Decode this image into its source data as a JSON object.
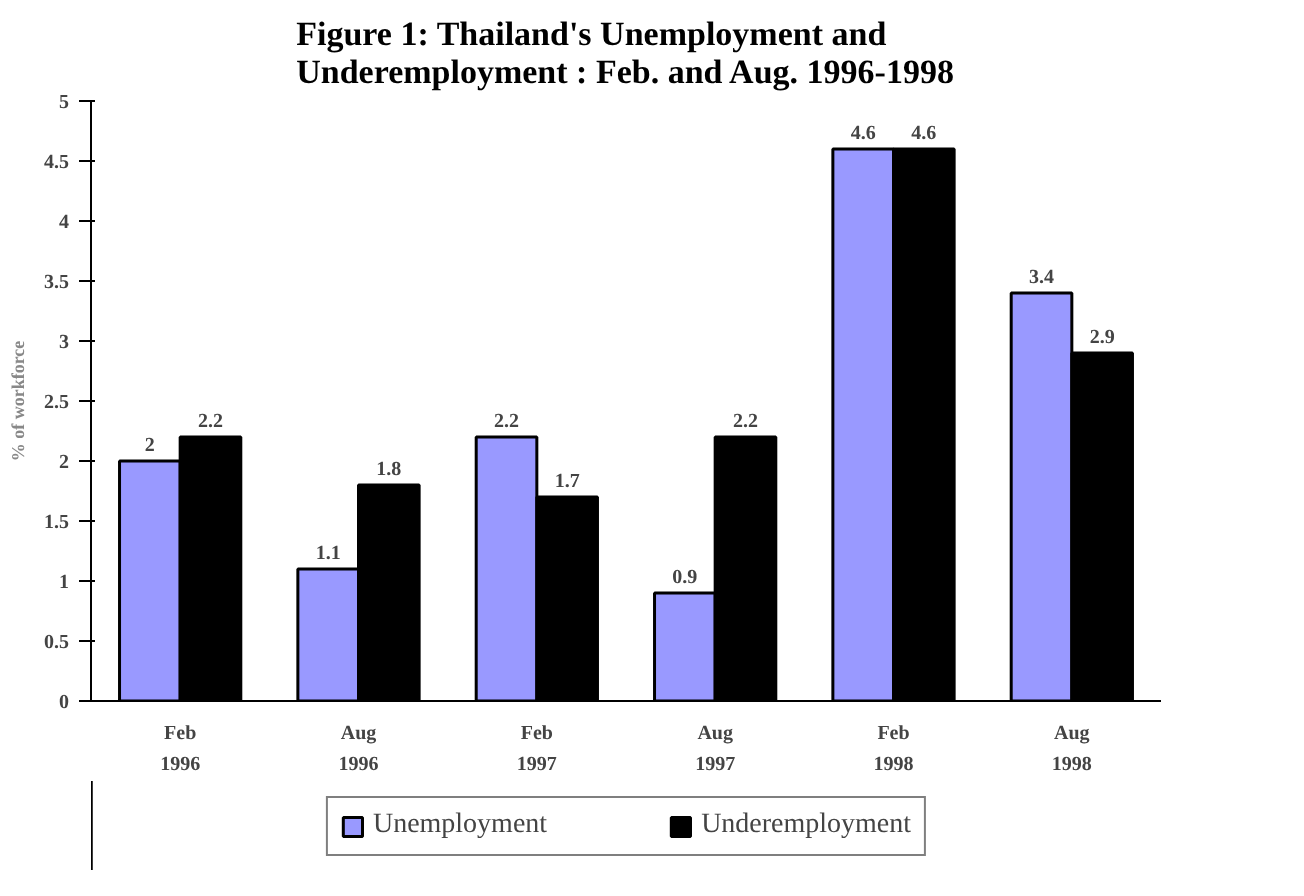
{
  "chart_data": {
    "type": "bar",
    "title": "Figure 1: Thailand's Unemployment and\nUnderemployment : Feb. and Aug. 1996-1998",
    "ylabel": "% of workforce",
    "categories": [
      "Feb\n1996",
      "Aug\n1996",
      "Feb\n1997",
      "Aug\n1997",
      "Feb\n1998",
      "Aug\n1998"
    ],
    "series": [
      {
        "name": "Unemployment",
        "color": "#9999ff",
        "values": [
          2,
          1.1,
          2.2,
          0.9,
          4.6,
          3.4
        ]
      },
      {
        "name": "Underemployment",
        "color": "#000000",
        "values": [
          2.2,
          1.8,
          1.7,
          2.2,
          4.6,
          2.9
        ]
      }
    ],
    "ylim": [
      0,
      5
    ],
    "yticks": [
      0,
      0.5,
      1,
      1.5,
      2,
      2.5,
      3,
      3.5,
      4,
      4.5,
      5
    ],
    "data_labels": true,
    "grid": false,
    "legend": "bottom"
  }
}
